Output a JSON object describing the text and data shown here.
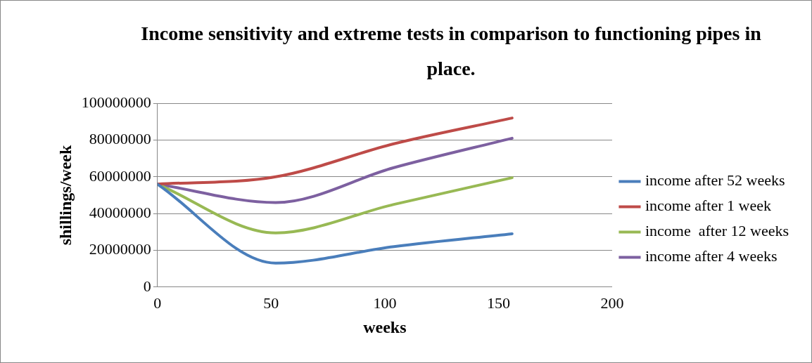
{
  "chart_data": {
    "type": "line",
    "title": "Income sensitivity and extreme tests in comparison to functioning pipes in place.",
    "xlabel": "weeks",
    "ylabel": "shillings/week",
    "x": [
      0,
      52,
      104,
      156
    ],
    "series": [
      {
        "name": "income after 52 weeks",
        "color": "#4a7ebb",
        "values": [
          56000000,
          13000000,
          22000000,
          29000000
        ]
      },
      {
        "name": "income after 1 week",
        "color": "#be4b48",
        "values": [
          56000000,
          60000000,
          78000000,
          92000000
        ]
      },
      {
        "name": "income  after 12 weeks",
        "color": "#98b954",
        "values": [
          56000000,
          29500000,
          45000000,
          59500000
        ]
      },
      {
        "name": "income after 4 weeks",
        "color": "#7d60a0",
        "values": [
          56000000,
          46000000,
          65000000,
          81000000
        ]
      }
    ],
    "xlim": [
      0,
      200
    ],
    "xticks": [
      0,
      50,
      100,
      150,
      200
    ],
    "ylim": [
      0,
      100000000
    ],
    "yticks": [
      0,
      20000000,
      40000000,
      60000000,
      80000000,
      100000000
    ],
    "grid": "y",
    "legend": "right",
    "marker": "none",
    "line_style": "solid"
  }
}
